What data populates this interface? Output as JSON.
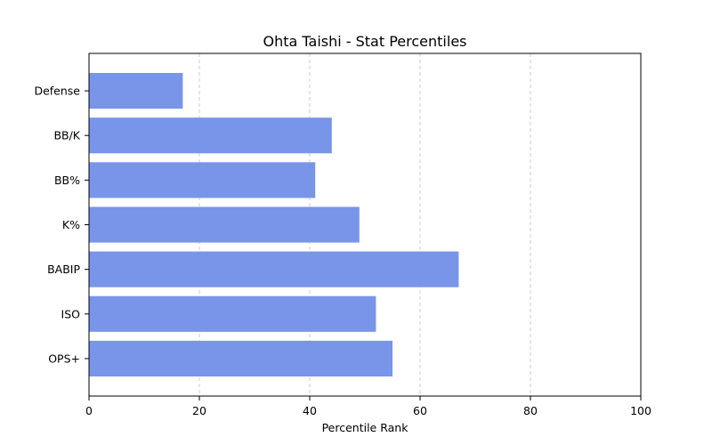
{
  "chart_data": {
    "type": "bar",
    "orientation": "horizontal",
    "title": "Ohta Taishi - Stat Percentiles",
    "xlabel": "Percentile Rank",
    "ylabel": "",
    "categories": [
      "Defense",
      "BB/K",
      "BB%",
      "K%",
      "BABIP",
      "ISO",
      "OPS+"
    ],
    "values": [
      17,
      44,
      41,
      49,
      67,
      52,
      55
    ],
    "xlim": [
      0,
      100
    ],
    "xticks": [
      "0",
      "20",
      "40",
      "60",
      "80",
      "100"
    ],
    "grid": "vertical dashed",
    "bar_color": "#7895EA"
  }
}
